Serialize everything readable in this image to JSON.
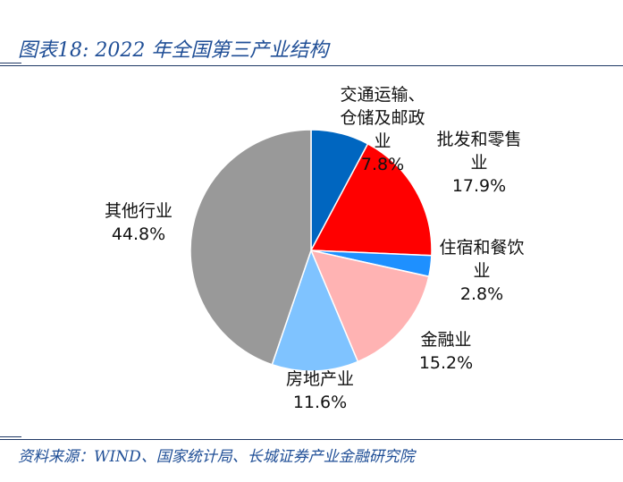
{
  "figure": {
    "title": "图表18:  2022 年全国第三产业结构",
    "source": "资料来源：WIND、国家统计局、长城证券产业金融研究院"
  },
  "chart_data": {
    "type": "pie",
    "slices": [
      {
        "name": "交通运输、仓储及邮政业",
        "label_lines": [
          "交通运输、",
          "仓储及邮政",
          "业"
        ],
        "value": 7.8,
        "value_label": "7.8%",
        "color": "#0066c0"
      },
      {
        "name": "批发和零售业",
        "label_lines": [
          "批发和零售",
          "业"
        ],
        "value": 17.9,
        "value_label": "17.9%",
        "color": "#ff0000"
      },
      {
        "name": "住宿和餐饮业",
        "label_lines": [
          "住宿和餐饮",
          "业"
        ],
        "value": 2.8,
        "value_label": "2.8%",
        "color": "#1e90ff"
      },
      {
        "name": "金融业",
        "label_lines": [
          "金融业"
        ],
        "value": 15.2,
        "value_label": "15.2%",
        "color": "#ffb3b3"
      },
      {
        "name": "房地产业",
        "label_lines": [
          "房地产业"
        ],
        "value": 11.6,
        "value_label": "11.6%",
        "color": "#7fc3ff"
      },
      {
        "name": "其他行业",
        "label_lines": [
          "其他行业"
        ],
        "value": 44.8,
        "value_label": "44.8%",
        "color": "#999999"
      }
    ]
  }
}
